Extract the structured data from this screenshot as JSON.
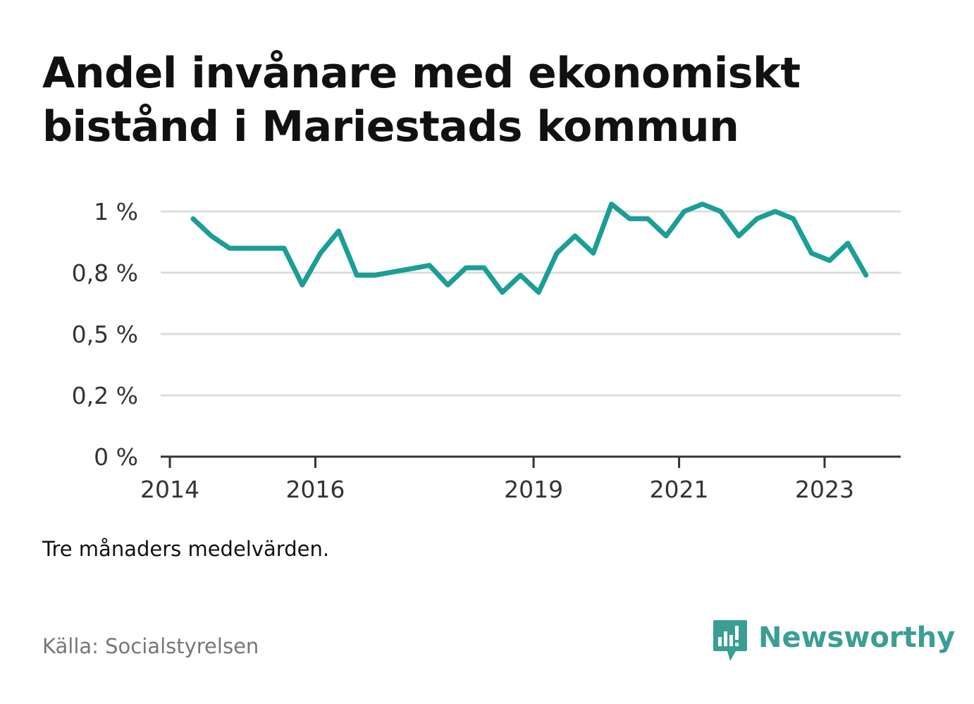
{
  "title_lines": [
    "Andel invånare med ekonomiskt",
    "bistånd i Mariestads kommun"
  ],
  "note": "Tre månaders medelvärden.",
  "source": "Källa: Socialstyrelsen",
  "brand": {
    "name": "Newsworthy",
    "icon": "bar-chart-speech-bubble-icon",
    "color": "#3a9e94"
  },
  "colors": {
    "line": "#1a9e96",
    "grid": "#dddddd",
    "axis": "#333333"
  },
  "chart_data": {
    "type": "line",
    "title": "Andel invånare med ekonomiskt bistånd i Mariestads kommun",
    "xlabel": "",
    "ylabel": "",
    "y_ticks": [
      {
        "value": 0,
        "label": "0 %"
      },
      {
        "value": 0.25,
        "label": "0,2 %"
      },
      {
        "value": 0.5,
        "label": "0,5 %"
      },
      {
        "value": 0.75,
        "label": "0,8 %"
      },
      {
        "value": 1.0,
        "label": "1 %"
      }
    ],
    "x_ticks": [
      {
        "value": 2014.0,
        "label": "2014"
      },
      {
        "value": 2016.0,
        "label": "2016"
      },
      {
        "value": 2019.0,
        "label": "2019"
      },
      {
        "value": 2021.0,
        "label": "2021"
      },
      {
        "value": 2023.0,
        "label": "2023"
      }
    ],
    "xlim": [
      2013.9,
      2024.1
    ],
    "ylim": [
      0,
      1.0
    ],
    "grid": true,
    "legend": "none",
    "series": [
      {
        "x": [
          2014.32,
          2014.57,
          2014.82,
          2015.07,
          2015.32,
          2015.57,
          2015.82,
          2016.07,
          2016.32,
          2016.57,
          2016.82,
          2017.57,
          2017.82,
          2018.07,
          2018.32,
          2018.57,
          2018.82,
          2019.07,
          2019.32,
          2019.57,
          2019.82,
          2020.07,
          2020.32,
          2020.57,
          2020.82,
          2021.07,
          2021.32,
          2021.57,
          2021.82,
          2022.07,
          2022.32,
          2022.57,
          2022.82,
          2023.07,
          2023.32,
          2023.57
        ],
        "values": [
          0.97,
          0.9,
          0.85,
          0.85,
          0.85,
          0.85,
          0.7,
          0.83,
          0.92,
          0.74,
          0.74,
          0.78,
          0.7,
          0.77,
          0.77,
          0.67,
          0.74,
          0.67,
          0.83,
          0.9,
          0.83,
          1.03,
          0.97,
          0.97,
          0.9,
          1.0,
          1.03,
          1.0,
          0.9,
          0.97,
          1.0,
          0.97,
          0.83,
          0.8,
          0.87,
          0.74
        ]
      }
    ]
  }
}
